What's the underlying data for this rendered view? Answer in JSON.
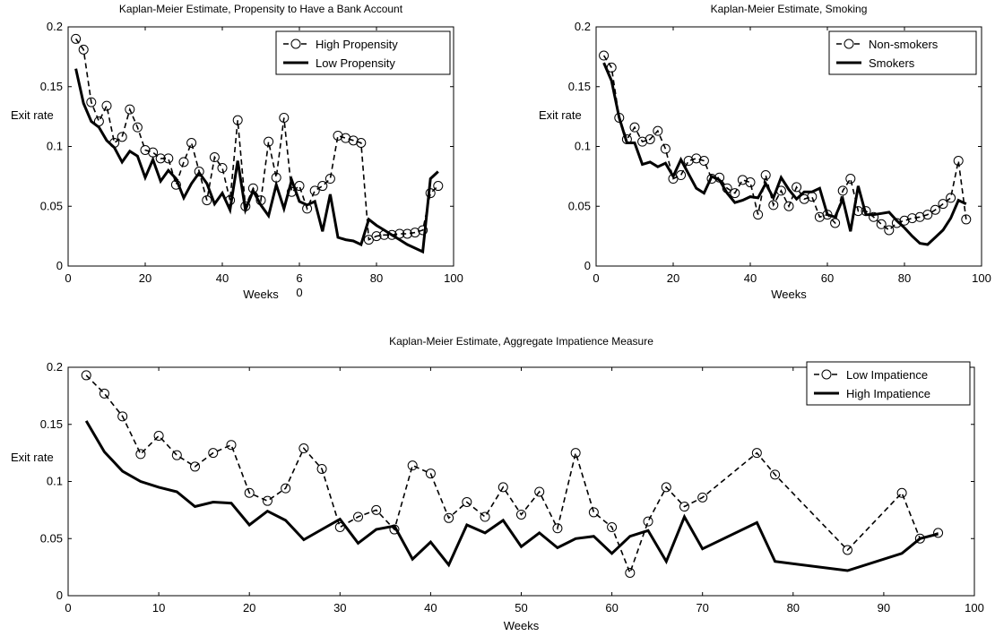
{
  "chart_data": [
    {
      "type": "line",
      "title": "Kaplan-Meier Estimate, Propensity to Have a Bank Account",
      "xlabel": "Weeks",
      "ylabel": "Exit rate",
      "xlim": [
        0,
        100
      ],
      "ylim": [
        0,
        0.2
      ],
      "xticks": [
        "0",
        "20",
        "40",
        "6\n0",
        "80",
        "100"
      ],
      "yticks": [
        "0",
        "0.05",
        "0.1",
        "0.15",
        "0.2"
      ],
      "legend_position": "top-right",
      "grid": false,
      "series": [
        {
          "name": "High Propensity",
          "style": "dashed-circle",
          "x": [
            2,
            4,
            6,
            8,
            10,
            12,
            14,
            16,
            18,
            20,
            22,
            24,
            26,
            28,
            30,
            32,
            34,
            36,
            38,
            40,
            42,
            44,
            46,
            48,
            50,
            52,
            54,
            56,
            58,
            60,
            62,
            64,
            66,
            68,
            70,
            72,
            74,
            76,
            78,
            80,
            82,
            84,
            86,
            88,
            90,
            92,
            94,
            96
          ],
          "y": [
            0.19,
            0.181,
            0.137,
            0.121,
            0.134,
            0.103,
            0.108,
            0.131,
            0.116,
            0.097,
            0.095,
            0.09,
            0.09,
            0.068,
            0.087,
            0.103,
            0.079,
            0.055,
            0.091,
            0.082,
            0.055,
            0.122,
            0.05,
            0.065,
            0.055,
            0.104,
            0.074,
            0.124,
            0.062,
            0.067,
            0.048,
            0.063,
            0.067,
            0.073,
            0.109,
            0.107,
            0.105,
            0.103,
            0.022,
            0.025,
            0.026,
            0.026,
            0.027,
            0.027,
            0.028,
            0.03,
            0.061,
            0.067
          ]
        },
        {
          "name": "Low Propensity",
          "style": "solid",
          "x": [
            2,
            4,
            6,
            8,
            10,
            12,
            14,
            16,
            18,
            20,
            22,
            24,
            26,
            28,
            30,
            32,
            34,
            36,
            38,
            40,
            42,
            44,
            46,
            48,
            50,
            52,
            54,
            56,
            58,
            60,
            62,
            64,
            66,
            68,
            70,
            72,
            74,
            76,
            78,
            80,
            82,
            84,
            86,
            88,
            90,
            92,
            94,
            96
          ],
          "y": [
            0.165,
            0.136,
            0.121,
            0.116,
            0.105,
            0.099,
            0.087,
            0.096,
            0.092,
            0.074,
            0.089,
            0.071,
            0.08,
            0.073,
            0.057,
            0.069,
            0.078,
            0.069,
            0.052,
            0.061,
            0.047,
            0.088,
            0.047,
            0.063,
            0.051,
            0.042,
            0.068,
            0.048,
            0.072,
            0.054,
            0.051,
            0.054,
            0.029,
            0.06,
            0.024,
            0.022,
            0.021,
            0.018,
            0.039,
            0.034,
            0.03,
            0.026,
            0.022,
            0.018,
            0.015,
            0.012,
            0.073,
            0.079
          ]
        }
      ]
    },
    {
      "type": "line",
      "title": "Kaplan-Meier Estimate, Smoking",
      "xlabel": "Weeks",
      "ylabel": "Exit rate",
      "xlim": [
        0,
        100
      ],
      "ylim": [
        0,
        0.2
      ],
      "xticks": [
        "0",
        "20",
        "40",
        "60",
        "80",
        "100"
      ],
      "yticks": [
        "0",
        "0.05",
        "0.1",
        "0.15",
        "0.2"
      ],
      "legend_position": "top-right",
      "grid": false,
      "series": [
        {
          "name": "Non-smokers",
          "style": "dashed-circle",
          "x": [
            2,
            4,
            6,
            8,
            10,
            12,
            14,
            16,
            18,
            20,
            22,
            24,
            26,
            28,
            30,
            32,
            34,
            36,
            38,
            40,
            42,
            44,
            46,
            48,
            50,
            52,
            54,
            56,
            58,
            60,
            62,
            64,
            66,
            68,
            70,
            72,
            74,
            76,
            78,
            80,
            82,
            84,
            86,
            88,
            90,
            92,
            94,
            96
          ],
          "y": [
            0.176,
            0.166,
            0.124,
            0.106,
            0.116,
            0.104,
            0.106,
            0.113,
            0.098,
            0.073,
            0.076,
            0.088,
            0.09,
            0.088,
            0.073,
            0.074,
            0.065,
            0.061,
            0.072,
            0.07,
            0.043,
            0.076,
            0.051,
            0.063,
            0.05,
            0.066,
            0.056,
            0.058,
            0.041,
            0.043,
            0.036,
            0.063,
            0.073,
            0.046,
            0.046,
            0.041,
            0.035,
            0.03,
            0.036,
            0.038,
            0.04,
            0.041,
            0.043,
            0.047,
            0.052,
            0.057,
            0.088,
            0.039
          ]
        },
        {
          "name": "Smokers",
          "style": "solid",
          "x": [
            2,
            4,
            6,
            8,
            10,
            12,
            14,
            16,
            18,
            20,
            22,
            24,
            26,
            28,
            30,
            32,
            34,
            36,
            38,
            40,
            42,
            44,
            46,
            48,
            50,
            52,
            54,
            56,
            58,
            60,
            62,
            64,
            66,
            68,
            70,
            72,
            74,
            76,
            78,
            80,
            82,
            84,
            86,
            88,
            90,
            92,
            94,
            96
          ],
          "y": [
            0.17,
            0.155,
            0.124,
            0.103,
            0.103,
            0.085,
            0.087,
            0.083,
            0.086,
            0.075,
            0.089,
            0.077,
            0.065,
            0.061,
            0.075,
            0.072,
            0.061,
            0.053,
            0.055,
            0.058,
            0.057,
            0.069,
            0.057,
            0.074,
            0.064,
            0.056,
            0.062,
            0.062,
            0.065,
            0.043,
            0.041,
            0.056,
            0.029,
            0.067,
            0.043,
            0.043,
            0.044,
            0.045,
            0.038,
            0.032,
            0.025,
            0.019,
            0.018,
            0.024,
            0.03,
            0.04,
            0.055,
            0.052
          ]
        }
      ]
    },
    {
      "type": "line",
      "title": "Kaplan-Meier Estimate, Aggregate Impatience Measure",
      "xlabel": "Weeks",
      "ylabel": "Exit rate",
      "xlim": [
        0,
        100
      ],
      "ylim": [
        0,
        0.2
      ],
      "xticks": [
        "0",
        "10",
        "20",
        "30",
        "40",
        "50",
        "60",
        "70",
        "80",
        "90",
        "100"
      ],
      "yticks": [
        "0",
        "0.05",
        "0.1",
        "0.15",
        "0.2"
      ],
      "legend_position": "top-right",
      "grid": false,
      "series": [
        {
          "name": "Low Impatience",
          "style": "dashed-circle",
          "x": [
            2,
            4,
            6,
            8,
            10,
            12,
            14,
            16,
            18,
            20,
            22,
            24,
            26,
            28,
            30,
            32,
            34,
            36,
            38,
            40,
            42,
            44,
            46,
            48,
            50,
            52,
            54,
            56,
            58,
            60,
            62,
            64,
            66,
            68,
            70,
            76,
            78,
            86,
            92,
            94,
            96
          ],
          "y": [
            0.193,
            0.177,
            0.157,
            0.124,
            0.14,
            0.123,
            0.113,
            0.125,
            0.132,
            0.09,
            0.083,
            0.094,
            0.129,
            0.111,
            0.06,
            0.069,
            0.075,
            0.058,
            0.114,
            0.107,
            0.068,
            0.082,
            0.069,
            0.095,
            0.071,
            0.091,
            0.059,
            0.125,
            0.073,
            0.06,
            0.02,
            0.065,
            0.095,
            0.078,
            0.086,
            0.125,
            0.106,
            0.04,
            0.09,
            0.05,
            0.055
          ]
        },
        {
          "name": "High Impatience",
          "style": "solid",
          "x": [
            2,
            4,
            6,
            8,
            10,
            12,
            14,
            16,
            18,
            20,
            22,
            24,
            26,
            28,
            30,
            32,
            34,
            36,
            38,
            40,
            42,
            44,
            46,
            48,
            50,
            52,
            54,
            56,
            58,
            60,
            62,
            64,
            66,
            68,
            70,
            76,
            78,
            86,
            92,
            94,
            96
          ],
          "y": [
            0.153,
            0.126,
            0.109,
            0.1,
            0.095,
            0.091,
            0.078,
            0.082,
            0.081,
            0.062,
            0.074,
            0.066,
            0.049,
            0.058,
            0.067,
            0.046,
            0.058,
            0.061,
            0.032,
            0.047,
            0.027,
            0.062,
            0.055,
            0.066,
            0.043,
            0.055,
            0.042,
            0.05,
            0.052,
            0.037,
            0.052,
            0.057,
            0.03,
            0.069,
            0.041,
            0.064,
            0.03,
            0.022,
            0.037,
            0.05,
            0.054
          ]
        }
      ]
    }
  ]
}
